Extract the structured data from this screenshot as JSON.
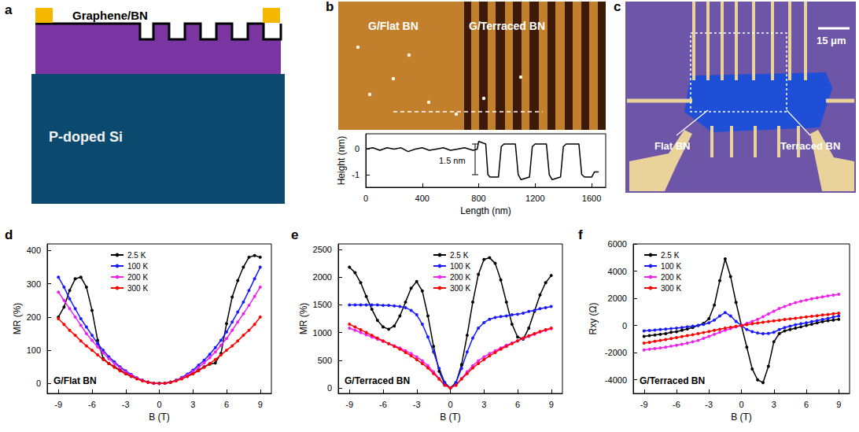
{
  "figure": {
    "a": {
      "label": "a",
      "top_label": "Graphene/BN",
      "substrate": "P-doped Si"
    },
    "b": {
      "label": "b",
      "left_region": "G/Flat BN",
      "right_region": "G/Terraced BN"
    },
    "c": {
      "label": "c",
      "scale_bar": "15 μm",
      "left_region": "Flat BN",
      "right_region": "Terraced BN"
    }
  },
  "chart_data": [
    {
      "type": "line",
      "xlabel": "Length (nm)",
      "ylabel": "Height (nm)",
      "x": [
        0,
        50,
        100,
        150,
        200,
        250,
        300,
        350,
        400,
        450,
        500,
        550,
        600,
        650,
        700,
        760,
        790,
        800,
        850,
        865,
        880,
        940,
        960,
        980,
        1060,
        1080,
        1100,
        1160,
        1180,
        1200,
        1280,
        1300,
        1320,
        1380,
        1400,
        1420,
        1510,
        1530,
        1550,
        1600,
        1620,
        1650
      ],
      "series": [
        {
          "color": "#000000",
          "values": [
            0,
            0.05,
            -0.05,
            0.05,
            0,
            0.05,
            -0.1,
            0,
            0.05,
            -0.05,
            0,
            0.05,
            -0.05,
            0,
            0.05,
            -0.05,
            0,
            0.3,
            0.2,
            -1.0,
            -1.1,
            -1.1,
            0.1,
            0.2,
            0.2,
            -1.0,
            -1.2,
            -1.1,
            0.1,
            0.2,
            0.2,
            -1.0,
            -1.2,
            -1.1,
            0.1,
            0.2,
            0.2,
            -1.0,
            -1.1,
            -1.1,
            -0.9,
            -0.9
          ]
        }
      ],
      "xlim": [
        0,
        1700
      ],
      "xticks": [
        0,
        400,
        800,
        1200,
        1600
      ],
      "ylim": [
        -1.5,
        0.6
      ],
      "yticks": [
        -1,
        0
      ],
      "annotations": [
        "1.5 nm"
      ],
      "grid": false
    },
    {
      "type": "line",
      "panel_label": "d",
      "xlabel": "B (T)",
      "ylabel": "MR (%)",
      "x": [
        -9,
        -8.5,
        -8,
        -7.5,
        -7,
        -6.5,
        -6,
        -5.5,
        -5,
        -4.5,
        -4,
        -3.5,
        -3,
        -2.5,
        -2,
        -1.5,
        -1,
        -0.5,
        0,
        0.5,
        1,
        1.5,
        2,
        2.5,
        3,
        3.5,
        4,
        4.5,
        5,
        5.5,
        6,
        6.5,
        7,
        7.5,
        8,
        8.5,
        9
      ],
      "series": [
        {
          "name": "2.5 K",
          "color": "#000000",
          "marker": "circle",
          "values": [
            200,
            230,
            280,
            315,
            320,
            290,
            220,
            130,
            75,
            60,
            50,
            40,
            30,
            22,
            15,
            9,
            4,
            1,
            0,
            1,
            4,
            9,
            15,
            22,
            30,
            40,
            50,
            58,
            62,
            90,
            180,
            260,
            310,
            350,
            380,
            385,
            380
          ]
        },
        {
          "name": "100 K",
          "color": "#1a1aff",
          "marker": "circle",
          "values": [
            320,
            290,
            255,
            225,
            195,
            170,
            145,
            120,
            100,
            80,
            65,
            50,
            38,
            27,
            17,
            10,
            4,
            1,
            0,
            1,
            4,
            10,
            18,
            28,
            40,
            55,
            70,
            88,
            108,
            130,
            155,
            185,
            215,
            245,
            280,
            315,
            350
          ]
        },
        {
          "name": "200 K",
          "color": "#ee22ee",
          "marker": "circle",
          "values": [
            275,
            250,
            225,
            200,
            175,
            150,
            130,
            110,
            92,
            75,
            60,
            47,
            35,
            25,
            16,
            9,
            4,
            1,
            0,
            1,
            4,
            9,
            16,
            25,
            36,
            48,
            62,
            78,
            95,
            115,
            135,
            160,
            185,
            210,
            235,
            262,
            290
          ]
        },
        {
          "name": "300 K",
          "color": "#ff0000",
          "marker": "circle",
          "values": [
            195,
            178,
            160,
            145,
            128,
            113,
            100,
            86,
            72,
            60,
            49,
            38,
            29,
            21,
            14,
            8,
            3,
            1,
            0,
            1,
            3,
            8,
            14,
            21,
            29,
            38,
            49,
            60,
            72,
            86,
            100,
            113,
            128,
            145,
            160,
            178,
            200
          ]
        }
      ],
      "xlim": [
        -10,
        10
      ],
      "xticks": [
        -9,
        -6,
        -3,
        0,
        3,
        6,
        9
      ],
      "ylim": [
        -30,
        420
      ],
      "yticks": [
        0,
        100,
        200,
        300,
        400
      ],
      "annotations": [
        "G/Flat BN"
      ],
      "legend": "upper left",
      "grid": false
    },
    {
      "type": "line",
      "panel_label": "e",
      "xlabel": "B (T)",
      "ylabel": "MR (%)",
      "x": [
        -9,
        -8.5,
        -8,
        -7.5,
        -7,
        -6.5,
        -6,
        -5.5,
        -5,
        -4.5,
        -4,
        -3.5,
        -3,
        -2.5,
        -2,
        -1.5,
        -1,
        -0.5,
        0,
        0.5,
        1,
        1.5,
        2,
        2.5,
        3,
        3.5,
        4,
        4.5,
        5,
        5.5,
        6,
        6.5,
        7,
        7.5,
        8,
        8.5,
        9
      ],
      "series": [
        {
          "name": "2.5 K",
          "color": "#000000",
          "marker": "circle",
          "values": [
            2180,
            2080,
            1900,
            1650,
            1420,
            1220,
            1100,
            1060,
            1120,
            1300,
            1550,
            1800,
            1920,
            1750,
            1300,
            750,
            300,
            70,
            0,
            90,
            420,
            950,
            1550,
            2050,
            2320,
            2350,
            2250,
            1950,
            1550,
            1150,
            920,
            880,
            1080,
            1380,
            1680,
            1900,
            2030
          ]
        },
        {
          "name": "100 K",
          "color": "#1a1aff",
          "marker": "circle",
          "values": [
            1500,
            1500,
            1500,
            1500,
            1500,
            1500,
            1490,
            1490,
            1480,
            1470,
            1450,
            1400,
            1320,
            1150,
            920,
            650,
            350,
            100,
            0,
            100,
            350,
            650,
            900,
            1080,
            1180,
            1240,
            1270,
            1290,
            1300,
            1320,
            1330,
            1350,
            1380,
            1400,
            1430,
            1450,
            1470
          ]
        },
        {
          "name": "200 K",
          "color": "#ee22ee",
          "marker": "circle",
          "values": [
            1080,
            1040,
            1000,
            960,
            920,
            880,
            840,
            800,
            760,
            720,
            670,
            620,
            560,
            490,
            400,
            290,
            170,
            50,
            0,
            50,
            170,
            290,
            400,
            490,
            560,
            620,
            670,
            720,
            770,
            810,
            850,
            890,
            930,
            970,
            1010,
            1040,
            1070
          ]
        },
        {
          "name": "300 K",
          "color": "#ff0000",
          "marker": "circle",
          "values": [
            1150,
            1100,
            1050,
            1000,
            950,
            900,
            850,
            800,
            750,
            700,
            640,
            580,
            510,
            440,
            360,
            260,
            160,
            50,
            0,
            50,
            160,
            260,
            360,
            440,
            510,
            580,
            640,
            700,
            750,
            800,
            850,
            900,
            940,
            980,
            1020,
            1050,
            1080
          ]
        }
      ],
      "xlim": [
        -10,
        10
      ],
      "xticks": [
        -9,
        -6,
        -3,
        0,
        3,
        6,
        9
      ],
      "ylim": [
        -100,
        2600
      ],
      "yticks": [
        0,
        500,
        1000,
        1500,
        2000,
        2500
      ],
      "annotations": [
        "G/Terraced BN"
      ],
      "legend": "upper center",
      "grid": false
    },
    {
      "type": "line",
      "panel_label": "f",
      "xlabel": "B (T)",
      "ylabel": "Rxy (Ω)",
      "x": [
        -9,
        -8.5,
        -8,
        -7.5,
        -7,
        -6.5,
        -6,
        -5.5,
        -5,
        -4.5,
        -4,
        -3.5,
        -3,
        -2.5,
        -2,
        -1.5,
        -1,
        -0.5,
        0,
        0.5,
        1,
        1.5,
        2,
        2.5,
        3,
        3.5,
        4,
        4.5,
        5,
        5.5,
        6,
        6.5,
        7,
        7.5,
        8,
        8.5,
        9
      ],
      "series": [
        {
          "name": "2.5 K",
          "color": "#000000",
          "marker": "circle",
          "values": [
            -800,
            -750,
            -700,
            -650,
            -600,
            -500,
            -450,
            -350,
            -250,
            -150,
            0,
            150,
            500,
            1500,
            3300,
            4900,
            3600,
            1700,
            0,
            -1600,
            -3200,
            -4000,
            -4200,
            -3000,
            -1200,
            -600,
            -400,
            -300,
            -200,
            -100,
            0,
            100,
            200,
            280,
            350,
            400,
            450
          ]
        },
        {
          "name": "100 K",
          "color": "#1a1aff",
          "marker": "circle",
          "values": [
            -400,
            -370,
            -340,
            -300,
            -270,
            -230,
            -200,
            -150,
            -100,
            -50,
            0,
            80,
            200,
            400,
            700,
            950,
            700,
            300,
            0,
            -300,
            -450,
            -550,
            -600,
            -580,
            -500,
            -300,
            -150,
            -50,
            50,
            130,
            200,
            280,
            360,
            440,
            520,
            610,
            700
          ]
        },
        {
          "name": "200 K",
          "color": "#ee22ee",
          "marker": "circle",
          "values": [
            -1800,
            -1750,
            -1700,
            -1650,
            -1600,
            -1520,
            -1450,
            -1380,
            -1300,
            -1200,
            -1100,
            -950,
            -800,
            -650,
            -500,
            -350,
            -230,
            -100,
            0,
            150,
            300,
            450,
            650,
            850,
            1050,
            1250,
            1400,
            1550,
            1680,
            1780,
            1880,
            1960,
            2040,
            2110,
            2180,
            2240,
            2300
          ]
        },
        {
          "name": "300 K",
          "color": "#ff0000",
          "marker": "circle",
          "values": [
            -1300,
            -1240,
            -1170,
            -1100,
            -1030,
            -960,
            -890,
            -820,
            -750,
            -680,
            -600,
            -520,
            -440,
            -360,
            -280,
            -200,
            -130,
            -60,
            0,
            60,
            120,
            180,
            240,
            290,
            340,
            390,
            440,
            480,
            530,
            580,
            630,
            680,
            720,
            770,
            810,
            860,
            900
          ]
        }
      ],
      "xlim": [
        -10,
        10
      ],
      "xticks": [
        -9,
        -6,
        -3,
        0,
        3,
        6,
        9
      ],
      "ylim": [
        -5000,
        6000
      ],
      "yticks": [
        -4000,
        -2000,
        0,
        2000,
        4000,
        6000
      ],
      "annotations": [
        "G/Terraced BN"
      ],
      "legend": "upper left",
      "grid": false
    }
  ]
}
